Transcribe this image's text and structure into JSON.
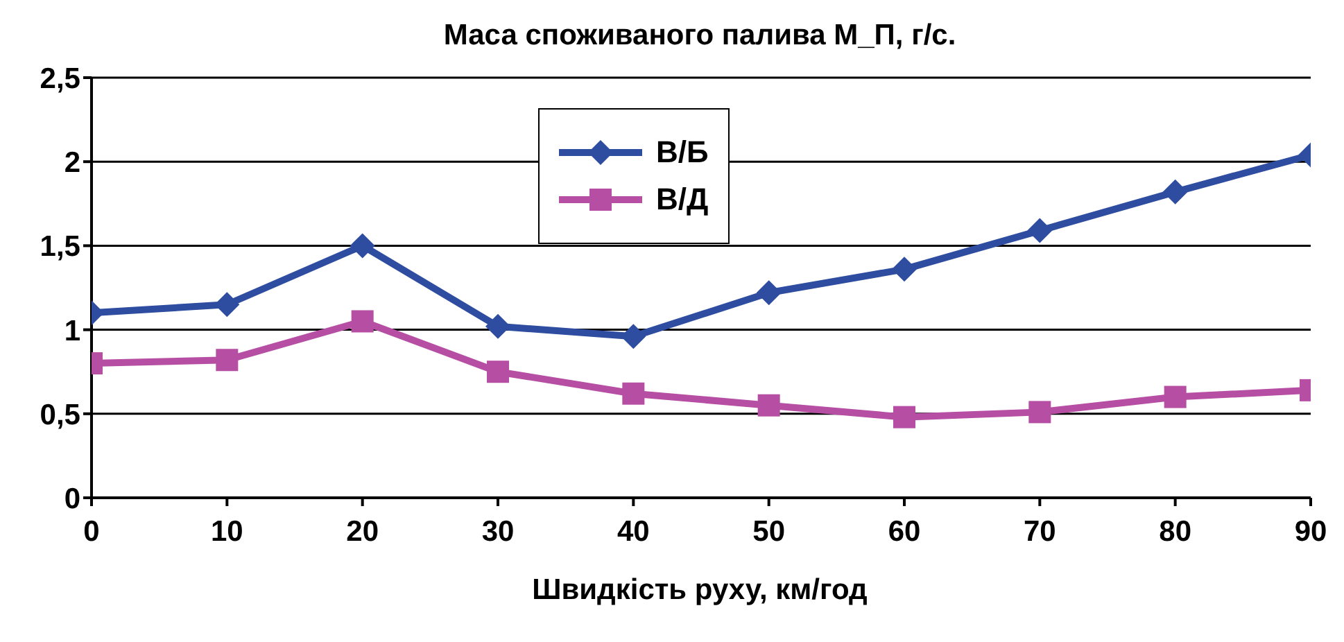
{
  "chart_data": {
    "type": "line",
    "title": "Маса споживаного палива М_П, г/с.",
    "xlabel": "Швидкість руху, км/год",
    "x": [
      0,
      10,
      20,
      30,
      40,
      50,
      60,
      70,
      80,
      90
    ],
    "series": [
      {
        "name": "В/Б",
        "color": "#2e4da0",
        "marker": "diamond",
        "values": [
          1.1,
          1.15,
          1.5,
          1.02,
          0.96,
          1.22,
          1.36,
          1.59,
          1.82,
          2.04
        ]
      },
      {
        "name": "В/Д",
        "color": "#b64fa4",
        "marker": "square",
        "values": [
          0.8,
          0.82,
          1.05,
          0.75,
          0.62,
          0.55,
          0.48,
          0.51,
          0.6,
          0.64
        ]
      }
    ],
    "xlim": [
      0,
      90
    ],
    "xticks": [
      0,
      10,
      20,
      30,
      40,
      50,
      60,
      70,
      80,
      90
    ],
    "ylim": [
      0,
      2.5
    ],
    "yticks": [
      0,
      {
        "value": 0.5,
        "label": "0,5"
      },
      1,
      {
        "value": 1.5,
        "label": "1,5"
      },
      2,
      {
        "value": 2.5,
        "label": "2,5"
      }
    ],
    "grid": "y",
    "legend": "top",
    "line_style": "solid"
  }
}
